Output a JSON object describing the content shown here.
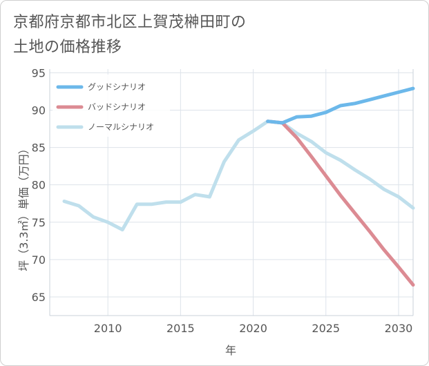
{
  "title_lines": [
    "京都府京都市北区上賀茂榊田町の",
    "土地の価格推移"
  ],
  "chart_data": {
    "type": "line",
    "title": "京都府京都市北区上賀茂榊田町の土地の価格推移",
    "xlabel": "年",
    "ylabel": "坪（3.3㎡）単価（万円）",
    "xlim": [
      2006,
      2031
    ],
    "ylim": [
      62.5,
      95.5
    ],
    "xticks": [
      2010,
      2015,
      2020,
      2025,
      2030
    ],
    "yticks": [
      65,
      70,
      75,
      80,
      85,
      90,
      95
    ],
    "grid": true,
    "legend_position": "top-left",
    "series": [
      {
        "name": "グッドシナリオ",
        "color": "#6cb8ea",
        "x": [
          2021,
          2022,
          2023,
          2024,
          2025,
          2026,
          2027,
          2028,
          2029,
          2030,
          2031
        ],
        "y": [
          88.5,
          88.3,
          89.1,
          89.2,
          89.7,
          90.6,
          90.9,
          91.4,
          91.9,
          92.4,
          92.9
        ]
      },
      {
        "name": "バッドシナリオ",
        "color": "#dc8b93",
        "x": [
          2021,
          2022,
          2023,
          2024,
          2025,
          2026,
          2027,
          2028,
          2029,
          2030,
          2031
        ],
        "y": [
          88.5,
          88.3,
          86.3,
          83.8,
          81.2,
          78.6,
          76.2,
          73.8,
          71.3,
          69.0,
          66.6
        ]
      },
      {
        "name": "ノーマルシナリオ",
        "color": "#bfdfec",
        "x": [
          2007,
          2008,
          2009,
          2010,
          2011,
          2012,
          2013,
          2014,
          2015,
          2016,
          2017,
          2018,
          2019,
          2020,
          2021,
          2022,
          2023,
          2024,
          2025,
          2026,
          2027,
          2028,
          2029,
          2030,
          2031
        ],
        "y": [
          77.8,
          77.2,
          75.7,
          75.0,
          74.0,
          77.4,
          77.4,
          77.7,
          77.7,
          78.7,
          78.4,
          83.1,
          86.0,
          87.2,
          88.5,
          88.3,
          86.9,
          85.8,
          84.3,
          83.3,
          82.0,
          80.8,
          79.4,
          78.4,
          76.9
        ]
      }
    ]
  }
}
